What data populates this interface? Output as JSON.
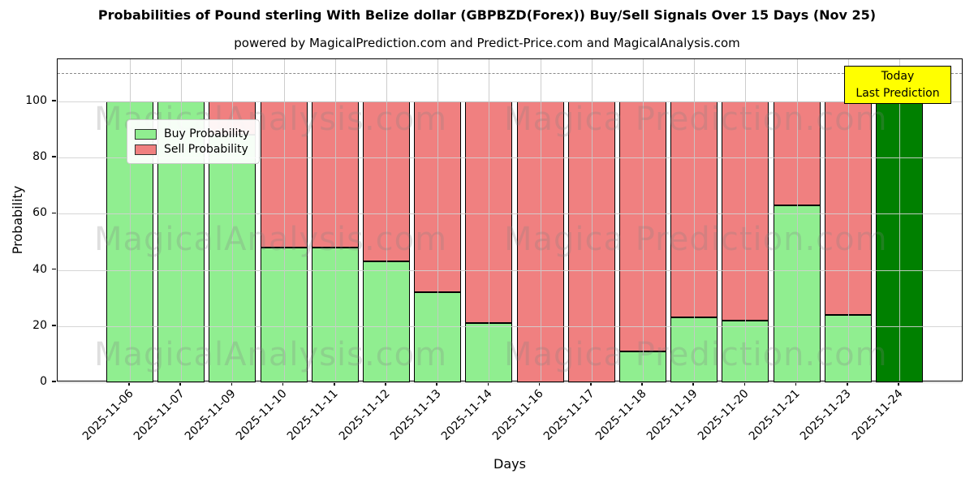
{
  "title": "Probabilities of Pound sterling With Belize dollar (GBPBZD(Forex)) Buy/Sell Signals Over 15 Days (Nov 25)",
  "subtitle": "powered by MagicalPrediction.com and Predict-Price.com and MagicalAnalysis.com",
  "legend": {
    "buy_label": "Buy Probability",
    "sell_label": "Sell Probability"
  },
  "annotation": {
    "line1": "Today",
    "line2": "Last Prediction",
    "bg_color": "#ffff00"
  },
  "watermarks": [
    "MagicalAnalysis.com",
    "Magica Prediction.com"
  ],
  "colors": {
    "buy": "#90EE90",
    "sell": "#F08080",
    "today_bar": "#008000",
    "bar_edge": "#000000",
    "grid": "#d2d2d2",
    "dashed_line": "#8a8a8a",
    "annotation_bg": "#ffff00"
  },
  "chart_data": {
    "type": "bar",
    "stacked": true,
    "title": "Probabilities of Pound sterling With Belize dollar (GBPBZD(Forex)) Buy/Sell Signals Over 15 Days (Nov 25)",
    "xlabel": "Days",
    "ylabel": "Probability",
    "categories": [
      "2025-11-06",
      "2025-11-07",
      "2025-11-09",
      "2025-11-10",
      "2025-11-11",
      "2025-11-12",
      "2025-11-13",
      "2025-11-14",
      "2025-11-16",
      "2025-11-17",
      "2025-11-18",
      "2025-11-19",
      "2025-11-20",
      "2025-11-21",
      "2025-11-23",
      "2025-11-24"
    ],
    "series": [
      {
        "name": "Buy Probability",
        "color": "#90EE90",
        "values": [
          100,
          100,
          88,
          48,
          48,
          43,
          32,
          21,
          0,
          0,
          11,
          23,
          22,
          63,
          24,
          100
        ]
      },
      {
        "name": "Sell Probability",
        "color": "#F08080",
        "values": [
          0,
          0,
          12,
          52,
          52,
          57,
          68,
          79,
          100,
          100,
          89,
          77,
          78,
          37,
          76,
          0
        ]
      }
    ],
    "last_bar_color": "#008000",
    "last_bar_note": "Today / Last Prediction",
    "yticks": [
      0,
      20,
      40,
      60,
      80,
      100
    ],
    "ylim": [
      0,
      115
    ],
    "dashed_line_y": 110,
    "grid": true,
    "legend_position": "upper left"
  }
}
